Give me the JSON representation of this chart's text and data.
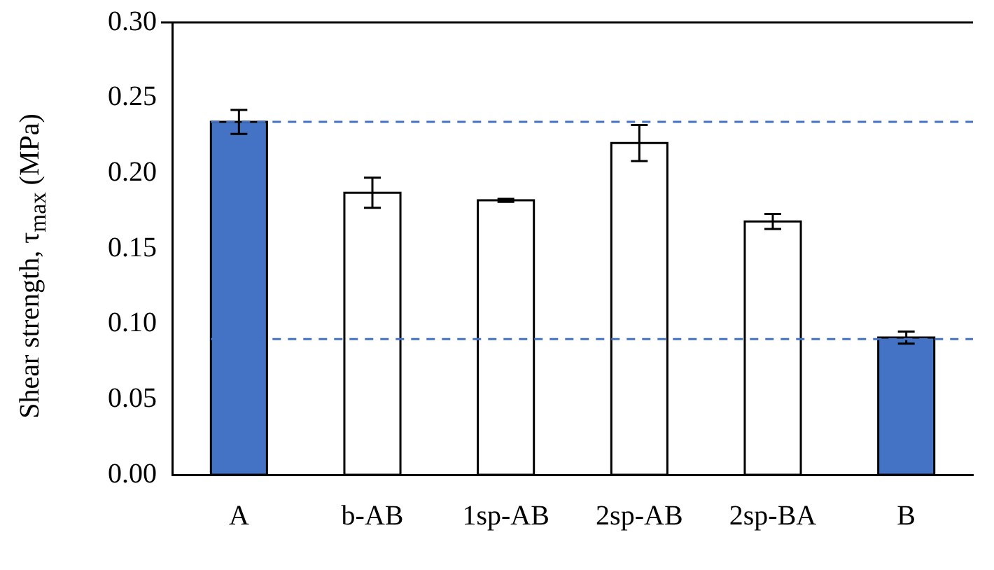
{
  "chart_data": {
    "type": "bar",
    "ylabel": "Shear strength, τ$_{max}$ (MPa)",
    "categories": [
      "A",
      "b-AB",
      "1sp-AB",
      "2sp-AB",
      "2sp-BA",
      "B"
    ],
    "values": [
      0.234,
      0.187,
      0.182,
      0.22,
      0.168,
      0.091
    ],
    "errors": [
      0.008,
      0.01,
      0.001,
      0.012,
      0.005,
      0.004
    ],
    "colors": [
      "#4472c4",
      "#ffffff",
      "#ffffff",
      "#ffffff",
      "#ffffff",
      "#4472c4"
    ],
    "ylim": [
      0,
      0.3
    ],
    "yticks": [
      {
        "value": 0,
        "label": "0.00"
      },
      {
        "value": 0.05,
        "label": "0.05"
      },
      {
        "value": 0.1,
        "label": "0.10"
      },
      {
        "value": 0.15,
        "label": "0.15"
      },
      {
        "value": 0.2,
        "label": "0.20"
      },
      {
        "value": 0.25,
        "label": "0.25"
      },
      {
        "value": 0.3,
        "label": "0.30"
      }
    ],
    "ref_lines": [
      {
        "axis": "y",
        "value": 0.234,
        "color": "#4472c4",
        "line_style": "dashed"
      },
      {
        "axis": "y",
        "value": 0.09,
        "color": "#4472c4",
        "line_style": "dashed"
      }
    ],
    "grid": false,
    "legend": false
  }
}
